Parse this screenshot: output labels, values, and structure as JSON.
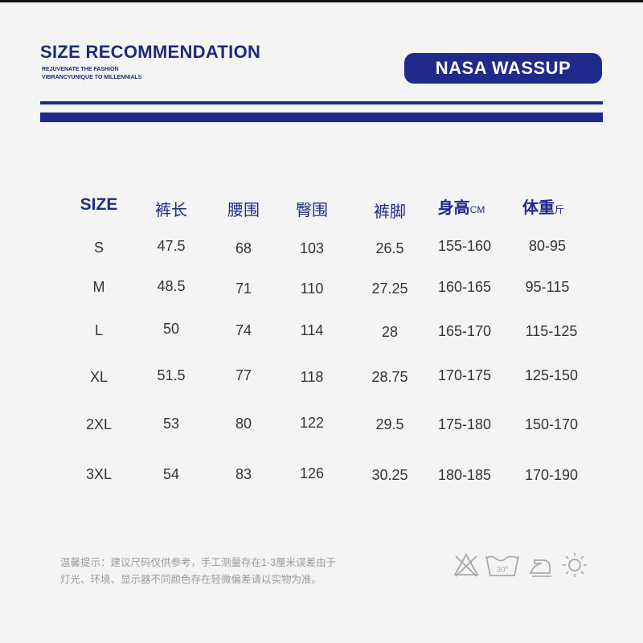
{
  "header": {
    "title": "SIZE RECOMMENDATION",
    "subtitle_line1": "REJUVENATE THE FASHION",
    "subtitle_line2": "VIBRANCYUNIQUE TO MILLENNIALS",
    "brand": "NASA WASSUP"
  },
  "table": {
    "columns": [
      {
        "label": "SIZE",
        "unit": ""
      },
      {
        "label": "裤长",
        "unit": ""
      },
      {
        "label": "腰围",
        "unit": ""
      },
      {
        "label": "臀围",
        "unit": ""
      },
      {
        "label": "裤脚",
        "unit": ""
      },
      {
        "label": "身高",
        "unit": "CM"
      },
      {
        "label": "体重",
        "unit": "斤"
      }
    ],
    "rows": [
      [
        "S",
        "47.5",
        "68",
        "103",
        "26.5",
        "155-160",
        "80-95"
      ],
      [
        "M",
        "48.5",
        "71",
        "110",
        "27.25",
        "160-165",
        "95-115"
      ],
      [
        "L",
        "50",
        "74",
        "114",
        "28",
        "165-170",
        "115-125"
      ],
      [
        "XL",
        "51.5",
        "77",
        "118",
        "28.75",
        "170-175",
        "125-150"
      ],
      [
        "2XL",
        "53",
        "80",
        "122",
        "29.5",
        "175-180",
        "150-170"
      ],
      [
        "3XL",
        "54",
        "83",
        "126",
        "30.25",
        "180-185",
        "170-190"
      ]
    ]
  },
  "footer": {
    "note_line1": "温馨提示：建议尺码仅供参考，手工测量存在1-3厘米误差由于",
    "note_line2": "灯光、环境、显示器不同颜色存在轻微偏差请以实物为准。",
    "wash_temp": "30°",
    "care_icons": [
      "no-bleach-icon",
      "wash-30-icon",
      "iron-icon",
      "sun-dry-icon"
    ]
  },
  "colors": {
    "accent": "#1f2a8a",
    "text": "#333333",
    "note": "#9a9a9a",
    "background": "#f4f4f4"
  }
}
